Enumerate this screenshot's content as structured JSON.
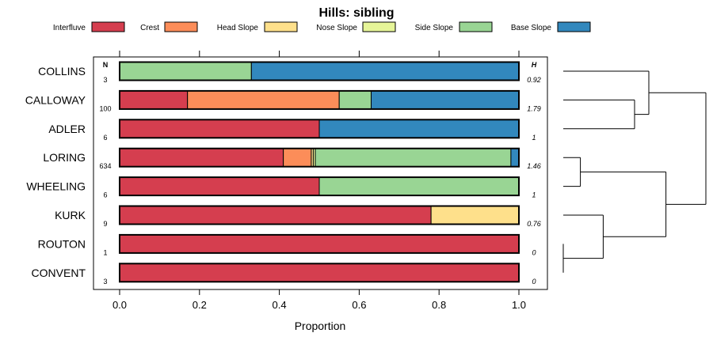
{
  "chart_data": {
    "type": "bar",
    "orientation": "horizontal",
    "stacked": true,
    "title": "Hills: sibling",
    "xlabel": "Proportion",
    "ylabel": "",
    "xlim": [
      0,
      1
    ],
    "xticks": [
      "0.0",
      "0.2",
      "0.4",
      "0.6",
      "0.8",
      "1.0"
    ],
    "legend_position": "top",
    "n_header": "N",
    "h_header": "H",
    "categories": [
      "COLLINS",
      "CALLOWAY",
      "ADLER",
      "LORING",
      "WHEELING",
      "KURK",
      "ROUTON",
      "CONVENT"
    ],
    "n_values": [
      "3",
      "100",
      "6",
      "634",
      "6",
      "9",
      "1",
      "3"
    ],
    "h_values": [
      "0.92",
      "1.79",
      "1",
      "1.46",
      "1",
      "0.76",
      "0",
      "0"
    ],
    "series": [
      {
        "name": "Interfluve",
        "color": "#d53e4f",
        "values": [
          0,
          0.17,
          0.5,
          0.41,
          0.5,
          0.78,
          1.0,
          1.0
        ]
      },
      {
        "name": "Crest",
        "color": "#fc8d59",
        "values": [
          0,
          0.38,
          0,
          0.07,
          0,
          0,
          0,
          0
        ]
      },
      {
        "name": "Head Slope",
        "color": "#fee08b",
        "values": [
          0,
          0,
          0,
          0.005,
          0,
          0.22,
          0,
          0
        ]
      },
      {
        "name": "Nose Slope",
        "color": "#e6f598",
        "values": [
          0,
          0,
          0,
          0.005,
          0,
          0,
          0,
          0
        ]
      },
      {
        "name": "Side Slope",
        "color": "#99d594",
        "values": [
          0.33,
          0.08,
          0,
          0.49,
          0.5,
          0,
          0,
          0
        ]
      },
      {
        "name": "Base Slope",
        "color": "#3288bd",
        "values": [
          0.67,
          0.37,
          0.5,
          0.02,
          0,
          0,
          0,
          0
        ]
      }
    ],
    "dendrogram": [
      [
        "ROUTON",
        "CONVENT",
        0
      ],
      [
        "LORING",
        "WHEELING",
        0.12
      ],
      [
        "KURK",
        "ROUTON+CONVENT",
        0.28
      ],
      [
        "CALLOWAY",
        "ADLER",
        0.5
      ],
      [
        "COLLINS",
        "CALLOWAY+ADLER",
        0.6
      ],
      [
        "LORING+WHEELING",
        "KURK+ROUTON+CONVENT",
        0.72
      ],
      [
        "COLLINS+CALLOWAY+ADLER",
        "LORING+WHEELING+KURK+ROUTON+CONVENT",
        1.0
      ]
    ]
  }
}
